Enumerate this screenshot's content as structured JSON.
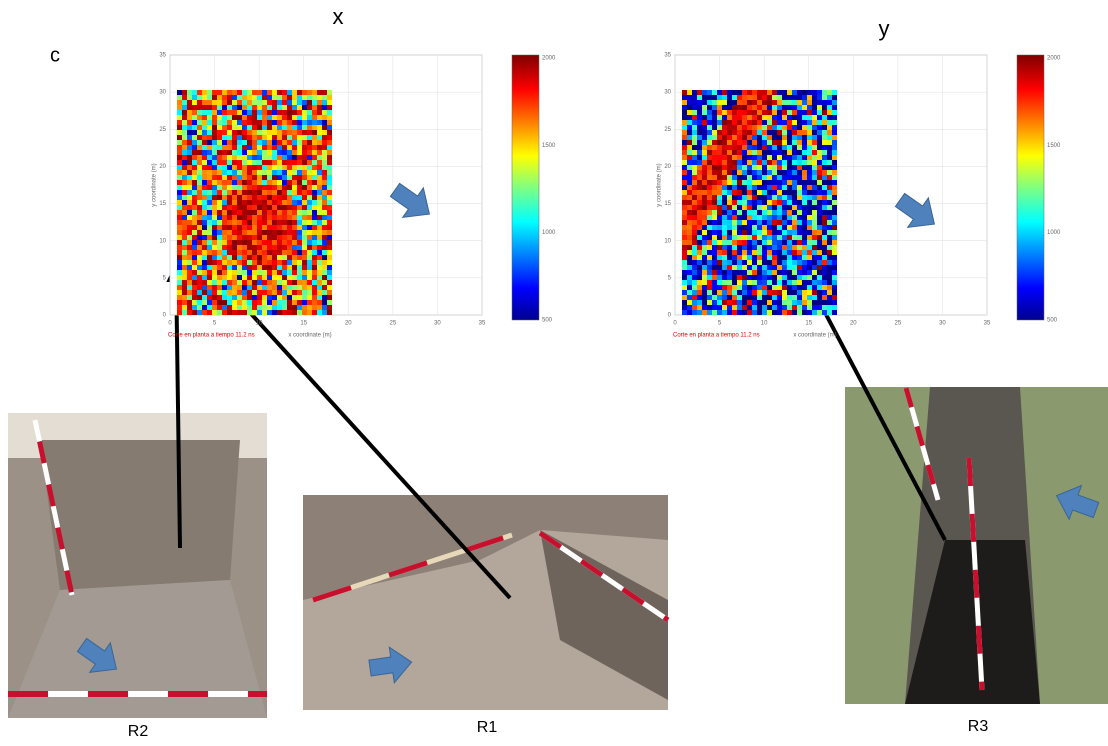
{
  "figure": {
    "label": "c",
    "panels": [
      {
        "title": "x",
        "y_axis_label": "y coordinate (m)",
        "x_axis_label": "x coordinate (m)",
        "caption": "Corte en planta a tiempo 11.2 ns",
        "y_ticks": [
          "0",
          "5",
          "10",
          "15",
          "20",
          "25",
          "30",
          "35"
        ],
        "x_ticks": [
          "0",
          "5",
          "10",
          "15",
          "20",
          "25",
          "30",
          "35"
        ],
        "colorbar_ticks": [
          "2000",
          "1500",
          "1000",
          "500"
        ]
      },
      {
        "title": "y",
        "y_axis_label": "y coordinate (m)",
        "x_axis_label": "x coordinate (m)",
        "caption": "Corte en planta a tiempo 11.2 ns",
        "y_ticks": [
          "0",
          "5",
          "10",
          "15",
          "20",
          "25",
          "30",
          "35"
        ],
        "x_ticks": [
          "0",
          "5",
          "10",
          "15",
          "20",
          "25",
          "30",
          "35"
        ],
        "colorbar_ticks": [
          "2000",
          "1500",
          "1000",
          "500"
        ]
      }
    ],
    "photos": [
      {
        "label": "R2"
      },
      {
        "label": "R1"
      },
      {
        "label": "R3"
      }
    ]
  }
}
